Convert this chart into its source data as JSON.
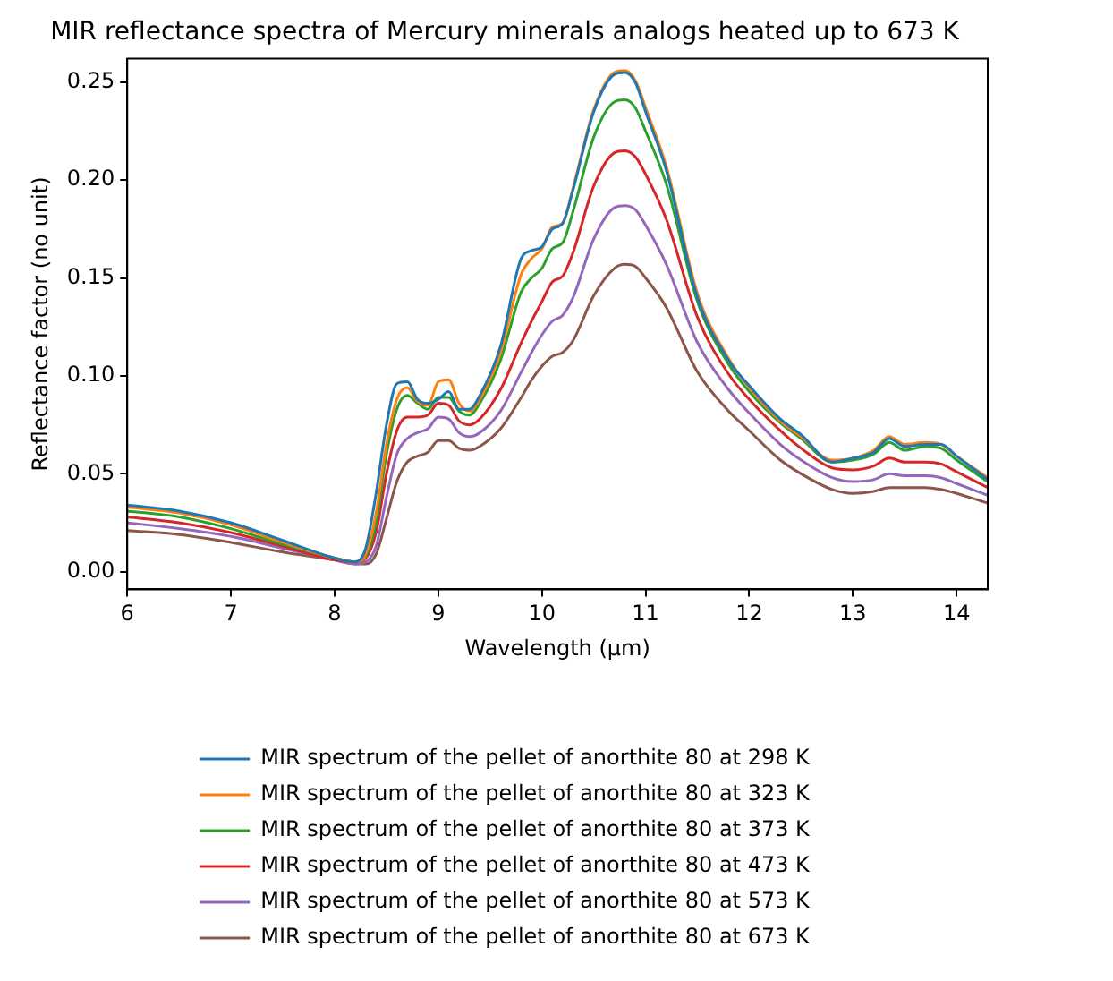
{
  "chart_data": {
    "type": "line",
    "title": "MIR reflectance spectra of Mercury minerals analogs heated up to 673 K",
    "xlabel": "Wavelength (μm)",
    "ylabel": "Reflectance factor (no unit)",
    "x": [
      6,
      6.5,
      7,
      7.5,
      8,
      8.2,
      8.3,
      8.4,
      8.5,
      8.6,
      8.7,
      8.8,
      8.9,
      9.0,
      9.1,
      9.2,
      9.3,
      9.4,
      9.6,
      9.8,
      9.9,
      10.0,
      10.1,
      10.2,
      10.3,
      10.5,
      10.7,
      10.8,
      10.9,
      11.0,
      11.2,
      11.5,
      11.8,
      12.0,
      12.3,
      12.5,
      12.8,
      13.0,
      13.2,
      13.35,
      13.5,
      13.7,
      13.85,
      14.0,
      14.3
    ],
    "series": [
      {
        "name": "MIR spectrum of the pellet of anorthite 80 at 298 K",
        "color": "#1f77b4",
        "values": [
          0.034,
          0.031,
          0.025,
          0.016,
          0.007,
          0.005,
          0.012,
          0.04,
          0.075,
          0.096,
          0.097,
          0.088,
          0.086,
          0.088,
          0.092,
          0.083,
          0.083,
          0.09,
          0.115,
          0.16,
          0.164,
          0.166,
          0.175,
          0.178,
          0.195,
          0.235,
          0.254,
          0.255,
          0.25,
          0.235,
          0.205,
          0.14,
          0.108,
          0.095,
          0.078,
          0.07,
          0.056,
          0.058,
          0.061,
          0.068,
          0.064,
          0.065,
          0.065,
          0.059,
          0.047
        ]
      },
      {
        "name": "MIR spectrum of the pellet of anorthite 80 at 323 K",
        "color": "#ff7f0e",
        "values": [
          0.033,
          0.03,
          0.024,
          0.015,
          0.007,
          0.005,
          0.009,
          0.03,
          0.065,
          0.088,
          0.094,
          0.087,
          0.085,
          0.097,
          0.098,
          0.086,
          0.082,
          0.088,
          0.112,
          0.152,
          0.16,
          0.165,
          0.176,
          0.178,
          0.196,
          0.236,
          0.255,
          0.256,
          0.251,
          0.237,
          0.207,
          0.142,
          0.109,
          0.094,
          0.077,
          0.069,
          0.057,
          0.058,
          0.062,
          0.069,
          0.065,
          0.066,
          0.065,
          0.059,
          0.048
        ]
      },
      {
        "name": "MIR spectrum of the pellet of anorthite 80 at 373 K",
        "color": "#2ca02c",
        "values": [
          0.031,
          0.028,
          0.022,
          0.014,
          0.007,
          0.005,
          0.008,
          0.025,
          0.06,
          0.083,
          0.09,
          0.086,
          0.083,
          0.089,
          0.089,
          0.082,
          0.08,
          0.086,
          0.108,
          0.143,
          0.15,
          0.155,
          0.165,
          0.168,
          0.184,
          0.222,
          0.24,
          0.241,
          0.237,
          0.225,
          0.198,
          0.138,
          0.106,
          0.092,
          0.076,
          0.068,
          0.056,
          0.057,
          0.06,
          0.066,
          0.062,
          0.064,
          0.063,
          0.057,
          0.046
        ]
      },
      {
        "name": "MIR spectrum of the pellet of anorthite 80 at 473 K",
        "color": "#d62728",
        "values": [
          0.028,
          0.025,
          0.02,
          0.013,
          0.006,
          0.005,
          0.007,
          0.02,
          0.05,
          0.072,
          0.079,
          0.079,
          0.08,
          0.086,
          0.085,
          0.077,
          0.075,
          0.078,
          0.093,
          0.117,
          0.128,
          0.138,
          0.148,
          0.151,
          0.163,
          0.197,
          0.214,
          0.215,
          0.212,
          0.203,
          0.18,
          0.13,
          0.101,
          0.088,
          0.072,
          0.063,
          0.053,
          0.052,
          0.054,
          0.058,
          0.056,
          0.056,
          0.055,
          0.051,
          0.043
        ]
      },
      {
        "name": "MIR spectrum of the pellet of anorthite 80 at 573 K",
        "color": "#9467bd",
        "values": [
          0.025,
          0.022,
          0.018,
          0.012,
          0.006,
          0.004,
          0.005,
          0.013,
          0.038,
          0.06,
          0.068,
          0.071,
          0.073,
          0.079,
          0.078,
          0.071,
          0.069,
          0.071,
          0.082,
          0.102,
          0.112,
          0.121,
          0.128,
          0.131,
          0.14,
          0.17,
          0.186,
          0.187,
          0.185,
          0.177,
          0.157,
          0.117,
          0.093,
          0.081,
          0.065,
          0.057,
          0.048,
          0.046,
          0.047,
          0.05,
          0.049,
          0.049,
          0.048,
          0.045,
          0.039
        ]
      },
      {
        "name": "MIR spectrum of the pellet of anorthite 80 at 673 K",
        "color": "#8c564b",
        "values": [
          0.021,
          0.019,
          0.015,
          0.01,
          0.006,
          0.004,
          0.004,
          0.009,
          0.027,
          0.046,
          0.056,
          0.059,
          0.061,
          0.067,
          0.067,
          0.063,
          0.062,
          0.064,
          0.073,
          0.089,
          0.098,
          0.105,
          0.11,
          0.112,
          0.118,
          0.141,
          0.155,
          0.157,
          0.156,
          0.15,
          0.135,
          0.102,
          0.082,
          0.072,
          0.057,
          0.05,
          0.042,
          0.04,
          0.041,
          0.043,
          0.043,
          0.043,
          0.042,
          0.04,
          0.035
        ]
      }
    ],
    "xlim": [
      6,
      14.3
    ],
    "xticks": [
      6,
      7,
      8,
      9,
      10,
      11,
      12,
      13,
      14
    ],
    "ylim": [
      -0.009,
      0.262
    ],
    "yticks": [
      {
        "value": 0,
        "label": "0.00"
      },
      {
        "value": 0.05,
        "label": "0.05"
      },
      {
        "value": 0.1,
        "label": "0.10"
      },
      {
        "value": 0.15,
        "label": "0.15"
      },
      {
        "value": 0.2,
        "label": "0.20"
      },
      {
        "value": 0.25,
        "label": "0.25"
      }
    ],
    "grid": false,
    "legend": "bottom",
    "marker": "none",
    "line_style": "solid"
  }
}
